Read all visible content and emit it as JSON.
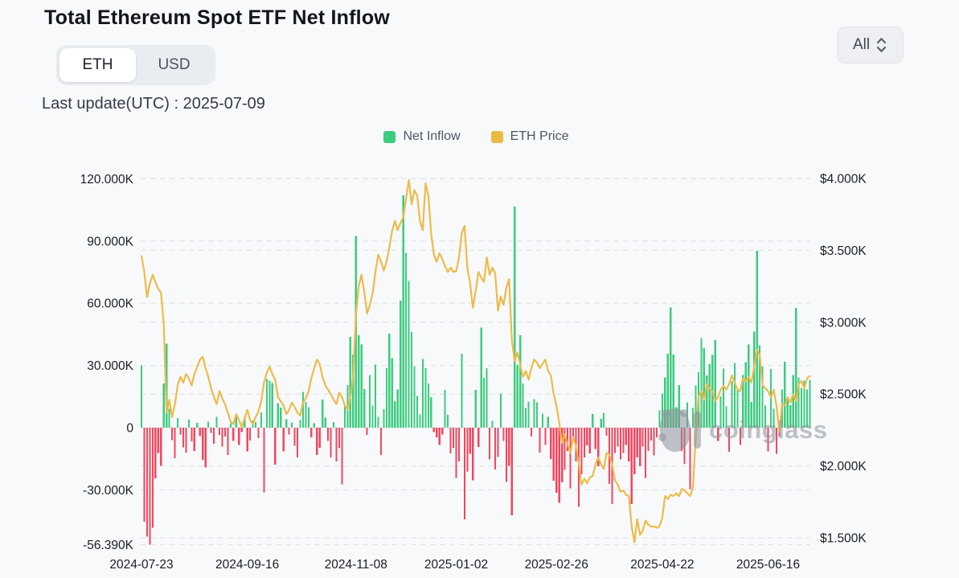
{
  "header": {
    "title": "Total Ethereum Spot ETF Net Inflow",
    "unit_toggle": {
      "options": [
        "ETH",
        "USD"
      ],
      "selected": "ETH"
    },
    "range_select": {
      "value": "All"
    },
    "last_update": "Last update(UTC) : 2025-07-09"
  },
  "legend": [
    {
      "label": "Net Inflow",
      "color": "#3ccb7f"
    },
    {
      "label": "ETH Price",
      "color": "#ecb945"
    }
  ],
  "watermark": "coinglass",
  "chart_data": {
    "type": "combo_bar_line",
    "x_ticks": {
      "labels": [
        "2024-07-23",
        "2024-09-16",
        "2024-11-08",
        "2025-01-02",
        "2025-02-26",
        "2025-04-22",
        "2025-06-16"
      ],
      "indices": [
        0,
        38,
        77,
        113,
        149,
        187,
        225
      ]
    },
    "y_left": {
      "title": "Net Inflow",
      "unit": "thousand ETH",
      "tick_labels": [
        "120.000K",
        "90.000K",
        "60.000K",
        "30.000K",
        "0",
        "-30.000K",
        "-56.390K"
      ],
      "tick_values": [
        120,
        90,
        60,
        30,
        0,
        -30,
        -56.39
      ],
      "range": [
        -56.39,
        120
      ]
    },
    "y_right": {
      "title": "ETH Price",
      "unit": "USD",
      "tick_labels": [
        "$4.000K",
        "$3.500K",
        "$3.000K",
        "$2.500K",
        "$2.000K",
        "$1.500K"
      ],
      "tick_values": [
        4000,
        3500,
        3000,
        2500,
        2000,
        1500
      ],
      "range": [
        1500,
        4000
      ]
    },
    "grid": {
      "style": "dashed",
      "color": "#e4e6ea"
    },
    "series": [
      {
        "name": "Net Inflow",
        "type": "bar",
        "axis": "left",
        "unit": "thousand ETH",
        "positive_color": "#3ccb7f",
        "negative_color": "#f5455c",
        "values": [
          30.1,
          -45.3,
          -52.6,
          -56.39,
          -48.2,
          -24.5,
          -12.3,
          -18.4,
          21.3,
          40.6,
          9.2,
          -6.1,
          -14.8,
          4.7,
          -3.2,
          -9.4,
          -12.1,
          3.8,
          -6.5,
          -11.2,
          2.4,
          -4.1,
          -15.6,
          -19.2,
          2.9,
          -2.6,
          -7.8,
          5.3,
          -3.4,
          -9.1,
          -4.3,
          -13.2,
          2.1,
          -6.4,
          5.8,
          -8.3,
          -2.1,
          4.6,
          -11.4,
          -6.2,
          3.4,
          2.8,
          -5.1,
          7.3,
          -31.2,
          23.4,
          22.6,
          21.5,
          -17.8,
          11.9,
          9.6,
          -11.4,
          4.1,
          -3.2,
          2.5,
          -8.7,
          -14.3,
          3.6,
          17.3,
          12.4,
          9.8,
          -4.6,
          2.2,
          -13.1,
          -9.7,
          13.6,
          4.8,
          -6.3,
          -14.4,
          2.7,
          -16.2,
          -9.8,
          -27.3,
          11.2,
          20.5,
          43.8,
          35.2,
          92.5,
          44.6,
          40.2,
          18.7,
          -3.4,
          25.3,
          10.6,
          30.4,
          5.2,
          -13.2,
          8.9,
          28.7,
          45.3,
          33.6,
          12.8,
          18.4,
          61.2,
          112.0,
          84.3,
          70.8,
          46.2,
          29.5,
          15.3,
          6.4,
          33.2,
          28.6,
          21.4,
          14.7,
          -2.1,
          -4.6,
          -8.3,
          -3.2,
          18.3,
          6.2,
          -12.4,
          -9.6,
          -24.3,
          -16.2,
          35.6,
          -44.1,
          -21.2,
          -12.6,
          -25.4,
          18.2,
          -9.3,
          48.3,
          24.1,
          28.6,
          -15.3,
          3.2,
          -20.1,
          -14.2,
          16.4,
          -6.3,
          -26.2,
          -18.4,
          -42.3,
          106.5,
          30.2,
          44.6,
          21.3,
          9.4,
          12.6,
          -4.2,
          13.8,
          12.2,
          -12.1,
          6.8,
          -8.4,
          5.3,
          -15.2,
          -25.6,
          -31.4,
          -36.2,
          -26.3,
          -20.4,
          -11.2,
          -29.3,
          -6.1,
          -16.2,
          -38.2,
          -22.4,
          -14.3,
          -8.6,
          -12.4,
          6.5,
          -10.2,
          -18.6,
          4.2,
          7.1,
          -3.8,
          -27.2,
          -36.8,
          -12.3,
          -9.2,
          -15.4,
          -12.3,
          -8.4,
          -16.2,
          -36.8,
          -22.4,
          -14.3,
          -18.6,
          -9.2,
          -24.2,
          -11.3,
          -6.2,
          -13.4,
          -4.6,
          8.3,
          16.4,
          24.3,
          35.6,
          57.9,
          35.2,
          9.8,
          20.6,
          -11.2,
          -17.4,
          12.3,
          -29.6,
          9.4,
          20.3,
          26.7,
          43.2,
          38.4,
          25.2,
          30.6,
          35.1,
          42.3,
          -6.3,
          15.2,
          28.4,
          10.3,
          -11.6,
          22.4,
          31.2,
          18.6,
          -8.4,
          25.3,
          31.6,
          40.2,
          12.4,
          46.3,
          85.2,
          39.7,
          29.4,
          10.6,
          -11.4,
          28.3,
          9.2,
          -12.6,
          -4.2,
          18.4,
          31.7,
          14.2,
          10.8,
          25.3,
          57.7,
          24.3,
          19.2,
          22.6,
          18.4,
          23.1
        ]
      },
      {
        "name": "ETH Price",
        "type": "line",
        "axis": "right",
        "unit": "USD",
        "color": "#edbb4a",
        "values": [
          3460,
          3350,
          3175,
          3270,
          3330,
          3280,
          3232,
          3205,
          2990,
          2370,
          2460,
          2340,
          2430,
          2560,
          2620,
          2580,
          2640,
          2610,
          2560,
          2640,
          2690,
          2740,
          2760,
          2680,
          2620,
          2540,
          2480,
          2430,
          2520,
          2470,
          2430,
          2370,
          2310,
          2290,
          2360,
          2320,
          2270,
          2330,
          2390,
          2320,
          2290,
          2340,
          2380,
          2450,
          2580,
          2650,
          2690,
          2640,
          2600,
          2480,
          2450,
          2420,
          2360,
          2390,
          2440,
          2410,
          2370,
          2350,
          2440,
          2470,
          2520,
          2610,
          2680,
          2740,
          2710,
          2620,
          2560,
          2530,
          2500,
          2460,
          2430,
          2510,
          2480,
          2420,
          2390,
          2470,
          2620,
          3050,
          3250,
          3330,
          3210,
          3060,
          3120,
          3200,
          3350,
          3470,
          3420,
          3360,
          3420,
          3520,
          3637,
          3704,
          3640,
          3690,
          3730,
          3860,
          3990,
          3820,
          3920,
          3880,
          3700,
          3640,
          3966,
          3880,
          3620,
          3470,
          3420,
          3480,
          3440,
          3390,
          3350,
          3380,
          3350,
          3355,
          3450,
          3620,
          3670,
          3380,
          3270,
          3100,
          3220,
          3350,
          3310,
          3280,
          3450,
          3330,
          3380,
          3340,
          3080,
          3180,
          3120,
          3240,
          3300,
          2870,
          2730,
          2790,
          2700,
          2620,
          2660,
          2600,
          2680,
          2740,
          2720,
          2680,
          2710,
          2740,
          2660,
          2630,
          2500,
          2420,
          2300,
          2160,
          2220,
          2150,
          2090,
          2200,
          2140,
          2020,
          1870,
          1910,
          1880,
          1920,
          1930,
          2010,
          2060,
          2010,
          1980,
          2090,
          2080,
          2010,
          1900,
          1870,
          1820,
          1830,
          1800,
          1790,
          1580,
          1470,
          1630,
          1520,
          1550,
          1620,
          1590,
          1577,
          1580,
          1570,
          1580,
          1640,
          1790,
          1770,
          1800,
          1790,
          1810,
          1790,
          1840,
          1830,
          1810,
          1790,
          1850,
          2200,
          2480,
          2520,
          2460,
          2570,
          2540,
          2520,
          2450,
          2480,
          2530,
          2560,
          2530,
          2570,
          2630,
          2580,
          2530,
          2520,
          2610,
          2590,
          2620,
          2580,
          2690,
          2810,
          2770,
          2560,
          2540,
          2520,
          2480,
          2530,
          2420,
          2240,
          2430,
          2420,
          2480,
          2440,
          2500,
          2450,
          2570,
          2590,
          2540,
          2610,
          2625
        ]
      }
    ]
  }
}
